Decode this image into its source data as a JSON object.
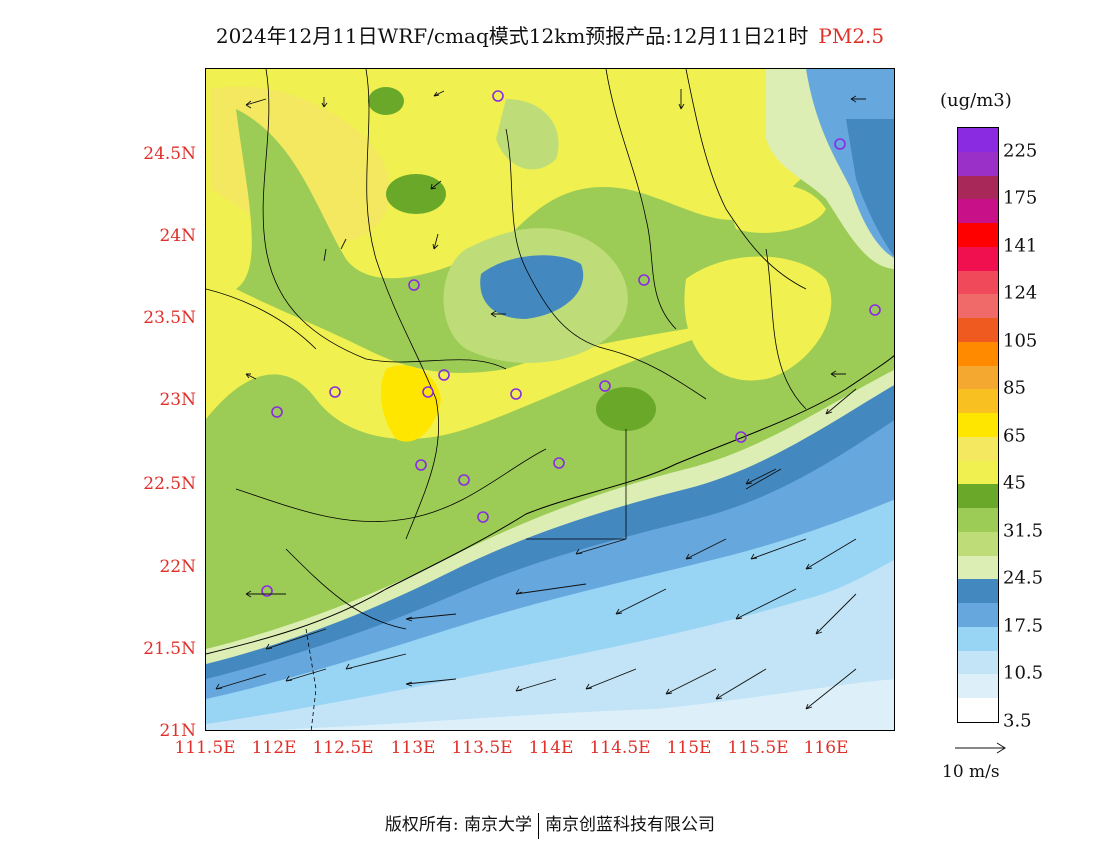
{
  "title": {
    "main": "2024年12月11日WRF/cmaq模式12km预报产品:12月11日21时",
    "pollutant": "PM2.5"
  },
  "axes": {
    "lat_labels": [
      "24.5N",
      "24N",
      "23.5N",
      "23N",
      "22.5N",
      "22N",
      "21.5N",
      "21N"
    ],
    "lon_labels": [
      "111.5E",
      "112E",
      "112.5E",
      "113E",
      "113.5E",
      "114E",
      "114.5E",
      "115E",
      "115.5E",
      "116E"
    ],
    "label_color": "#e0302a"
  },
  "legend": {
    "units": "(ug/m3)",
    "labels": [
      "225",
      "175",
      "141",
      "124",
      "105",
      "85",
      "65",
      "45",
      "31.5",
      "24.5",
      "17.5",
      "10.5",
      "3.5"
    ],
    "colors": [
      "#8a2be2",
      "#9a30c8",
      "#a8285a",
      "#c81088",
      "#ff0000",
      "#f01050",
      "#f04a5a",
      "#f06a6a",
      "#ee5a20",
      "#ff8a00",
      "#f4a830",
      "#f8c020",
      "#ffe600",
      "#f4e860",
      "#f0f050",
      "#6aa82a",
      "#9ccc55",
      "#bedd78",
      "#dceeb4",
      "#4488c0",
      "#66a8de",
      "#98d4f4",
      "#c2e4f6",
      "#ddf0fa",
      "#ffffff"
    ]
  },
  "reference_vector": {
    "label": "10 m/s"
  },
  "footer": {
    "left": "版权所有: 南京大学",
    "right": "南京创蓝科技有限公司"
  }
}
